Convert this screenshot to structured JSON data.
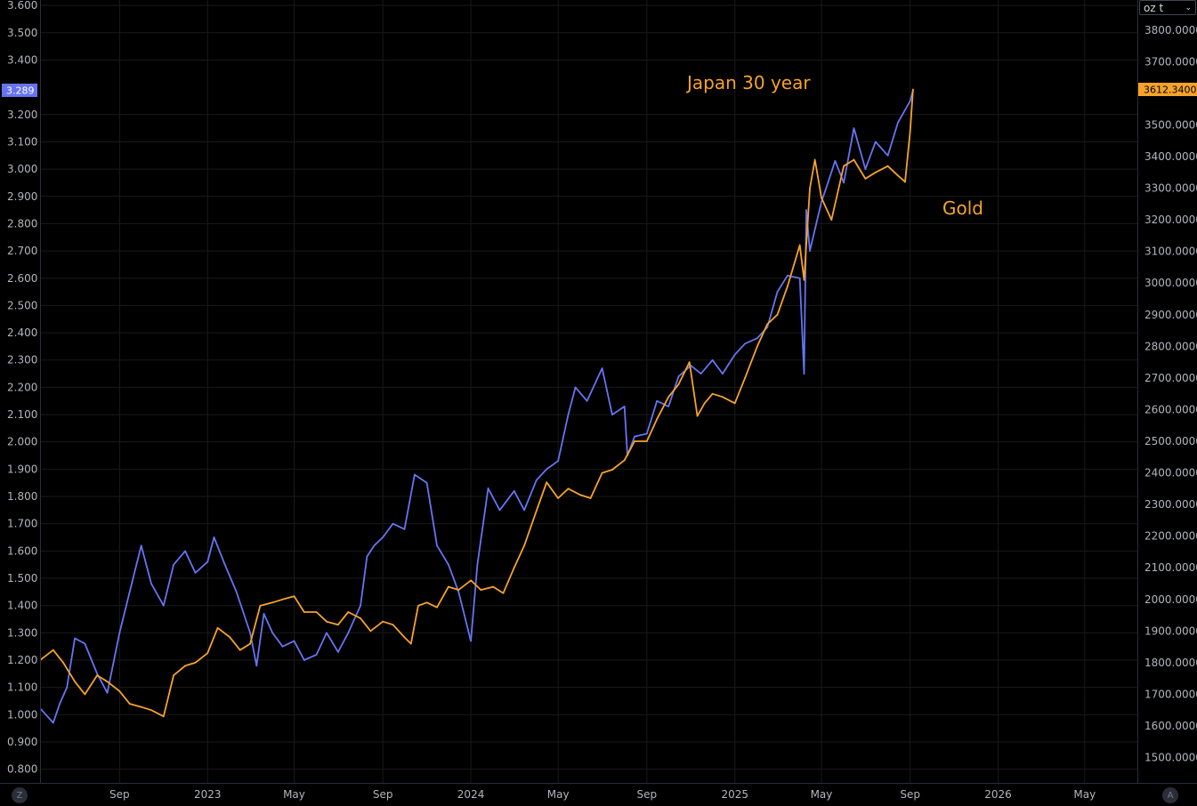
{
  "units_select": {
    "value": "oz t"
  },
  "corner_buttons": {
    "left": "Z",
    "right": "A"
  },
  "chart_data": {
    "type": "line",
    "annotations": [
      "Japan 30 year",
      "Gold"
    ],
    "colors": {
      "japan": "#6674f2",
      "gold": "#f7a32a",
      "background": "#000000",
      "grid": "#1a1a1a"
    },
    "x_ticks": [
      "Sep",
      "2023",
      "May",
      "Sep",
      "2024",
      "May",
      "Sep",
      "2025",
      "May",
      "Sep",
      "2026",
      "May"
    ],
    "x_tick_dates": [
      "2022-09-01",
      "2023-01-01",
      "2023-05-01",
      "2023-09-01",
      "2024-01-01",
      "2024-05-01",
      "2024-09-01",
      "2025-01-01",
      "2025-05-01",
      "2025-09-01",
      "2026-01-01",
      "2026-05-01"
    ],
    "left_axis": {
      "ticks": [
        "3.600",
        "3.500",
        "3.400",
        "3.200",
        "3.100",
        "3.000",
        "2.900",
        "2.800",
        "2.700",
        "2.600",
        "2.500",
        "2.400",
        "2.300",
        "2.200",
        "2.100",
        "2.000",
        "1.900",
        "1.800",
        "1.700",
        "1.600",
        "1.500",
        "1.400",
        "1.300",
        "1.200",
        "1.100",
        "1.000",
        "0.900",
        "0.800"
      ],
      "ylim": [
        0.75,
        3.62
      ],
      "last_label": "3.289"
    },
    "right_axis": {
      "ticks": [
        "3800.0000",
        "3700.0000",
        "3500.0000",
        "3400.0000",
        "3300.0000",
        "3200.0000",
        "3100.0000",
        "3000.0000",
        "2900.0000",
        "2800.0000",
        "2700.0000",
        "2600.0000",
        "2500.0000",
        "2400.0000",
        "2300.0000",
        "2200.0000",
        "2100.0000",
        "2000.0000",
        "1900.0000",
        "1800.0000",
        "1700.0000",
        "1600.0000",
        "1500.0000"
      ],
      "ylim": [
        1420,
        3895
      ],
      "last_label": "3612.3400"
    },
    "series": [
      {
        "name": "Japan 30 year",
        "x": [
          "2022-05-15",
          "2022-06-01",
          "2022-06-10",
          "2022-06-20",
          "2022-07-01",
          "2022-07-15",
          "2022-08-01",
          "2022-08-15",
          "2022-09-01",
          "2022-09-15",
          "2022-10-01",
          "2022-10-15",
          "2022-11-01",
          "2022-11-15",
          "2022-12-01",
          "2022-12-15",
          "2023-01-01",
          "2023-01-10",
          "2023-01-25",
          "2023-02-10",
          "2023-03-01",
          "2023-03-10",
          "2023-03-20",
          "2023-04-01",
          "2023-04-15",
          "2023-05-01",
          "2023-05-15",
          "2023-06-01",
          "2023-06-15",
          "2023-07-01",
          "2023-07-15",
          "2023-08-01",
          "2023-08-10",
          "2023-08-20",
          "2023-09-01",
          "2023-09-15",
          "2023-10-01",
          "2023-10-15",
          "2023-11-01",
          "2023-11-15",
          "2023-12-01",
          "2023-12-15",
          "2024-01-01",
          "2024-01-10",
          "2024-01-25",
          "2024-02-10",
          "2024-03-01",
          "2024-03-15",
          "2024-04-01",
          "2024-04-15",
          "2024-05-01",
          "2024-05-15",
          "2024-05-25",
          "2024-06-10",
          "2024-07-01",
          "2024-07-15",
          "2024-08-01",
          "2024-08-05",
          "2024-08-15",
          "2024-09-01",
          "2024-09-15",
          "2024-10-01",
          "2024-10-15",
          "2024-11-01",
          "2024-11-15",
          "2024-12-01",
          "2024-12-15",
          "2025-01-01",
          "2025-01-15",
          "2025-02-01",
          "2025-02-15",
          "2025-03-01",
          "2025-03-15",
          "2025-04-01",
          "2025-04-07",
          "2025-04-10",
          "2025-04-15",
          "2025-05-01",
          "2025-05-10",
          "2025-05-20",
          "2025-06-01",
          "2025-06-15",
          "2025-07-01",
          "2025-07-15",
          "2025-08-01",
          "2025-08-15",
          "2025-09-01",
          "2025-09-05"
        ],
        "values": [
          1.02,
          0.97,
          1.04,
          1.1,
          1.28,
          1.26,
          1.15,
          1.08,
          1.3,
          1.45,
          1.62,
          1.48,
          1.4,
          1.55,
          1.6,
          1.52,
          1.56,
          1.65,
          1.55,
          1.45,
          1.3,
          1.18,
          1.37,
          1.3,
          1.25,
          1.27,
          1.2,
          1.22,
          1.3,
          1.23,
          1.3,
          1.4,
          1.58,
          1.62,
          1.65,
          1.7,
          1.68,
          1.88,
          1.85,
          1.62,
          1.55,
          1.45,
          1.27,
          1.55,
          1.83,
          1.75,
          1.82,
          1.75,
          1.86,
          1.9,
          1.93,
          2.1,
          2.2,
          2.15,
          2.27,
          2.1,
          2.13,
          1.95,
          2.02,
          2.03,
          2.15,
          2.13,
          2.24,
          2.28,
          2.25,
          2.3,
          2.25,
          2.32,
          2.36,
          2.38,
          2.42,
          2.55,
          2.61,
          2.6,
          2.25,
          2.85,
          2.7,
          2.88,
          2.95,
          3.03,
          2.95,
          3.15,
          3.0,
          3.1,
          3.05,
          3.17,
          3.25,
          3.289
        ]
      },
      {
        "name": "Gold",
        "x": [
          "2022-05-15",
          "2022-06-01",
          "2022-06-15",
          "2022-07-01",
          "2022-07-15",
          "2022-08-01",
          "2022-08-15",
          "2022-09-01",
          "2022-09-15",
          "2022-10-01",
          "2022-10-15",
          "2022-11-01",
          "2022-11-15",
          "2022-12-01",
          "2022-12-15",
          "2023-01-01",
          "2023-01-15",
          "2023-02-01",
          "2023-02-15",
          "2023-03-01",
          "2023-03-15",
          "2023-04-01",
          "2023-04-15",
          "2023-05-01",
          "2023-05-15",
          "2023-06-01",
          "2023-06-15",
          "2023-07-01",
          "2023-07-15",
          "2023-08-01",
          "2023-08-15",
          "2023-09-01",
          "2023-09-15",
          "2023-10-01",
          "2023-10-10",
          "2023-10-20",
          "2023-11-01",
          "2023-11-15",
          "2023-12-01",
          "2023-12-15",
          "2024-01-01",
          "2024-01-15",
          "2024-02-01",
          "2024-02-15",
          "2024-03-01",
          "2024-03-15",
          "2024-04-01",
          "2024-04-15",
          "2024-05-01",
          "2024-05-15",
          "2024-06-01",
          "2024-06-15",
          "2024-07-01",
          "2024-07-15",
          "2024-08-01",
          "2024-08-15",
          "2024-09-01",
          "2024-09-15",
          "2024-10-01",
          "2024-10-15",
          "2024-10-30",
          "2024-11-10",
          "2024-11-20",
          "2024-12-01",
          "2024-12-15",
          "2025-01-01",
          "2025-01-15",
          "2025-02-01",
          "2025-02-15",
          "2025-03-01",
          "2025-03-15",
          "2025-04-01",
          "2025-04-07",
          "2025-04-15",
          "2025-04-22",
          "2025-05-01",
          "2025-05-15",
          "2025-06-01",
          "2025-06-15",
          "2025-07-01",
          "2025-07-15",
          "2025-08-01",
          "2025-08-15",
          "2025-08-25",
          "2025-09-01",
          "2025-09-05"
        ],
        "values": [
          1810,
          1840,
          1800,
          1740,
          1700,
          1760,
          1740,
          1710,
          1670,
          1660,
          1650,
          1630,
          1760,
          1790,
          1800,
          1830,
          1910,
          1880,
          1840,
          1860,
          1980,
          1990,
          2000,
          2010,
          1960,
          1960,
          1930,
          1920,
          1960,
          1940,
          1900,
          1930,
          1920,
          1880,
          1860,
          1980,
          1990,
          1975,
          2040,
          2030,
          2060,
          2030,
          2040,
          2020,
          2100,
          2170,
          2280,
          2370,
          2320,
          2350,
          2330,
          2320,
          2400,
          2410,
          2440,
          2500,
          2500,
          2570,
          2640,
          2680,
          2750,
          2580,
          2620,
          2650,
          2640,
          2620,
          2700,
          2800,
          2870,
          2900,
          2990,
          3120,
          3010,
          3300,
          3390,
          3270,
          3200,
          3370,
          3390,
          3330,
          3350,
          3370,
          3340,
          3320,
          3480,
          3612.34
        ]
      }
    ]
  }
}
